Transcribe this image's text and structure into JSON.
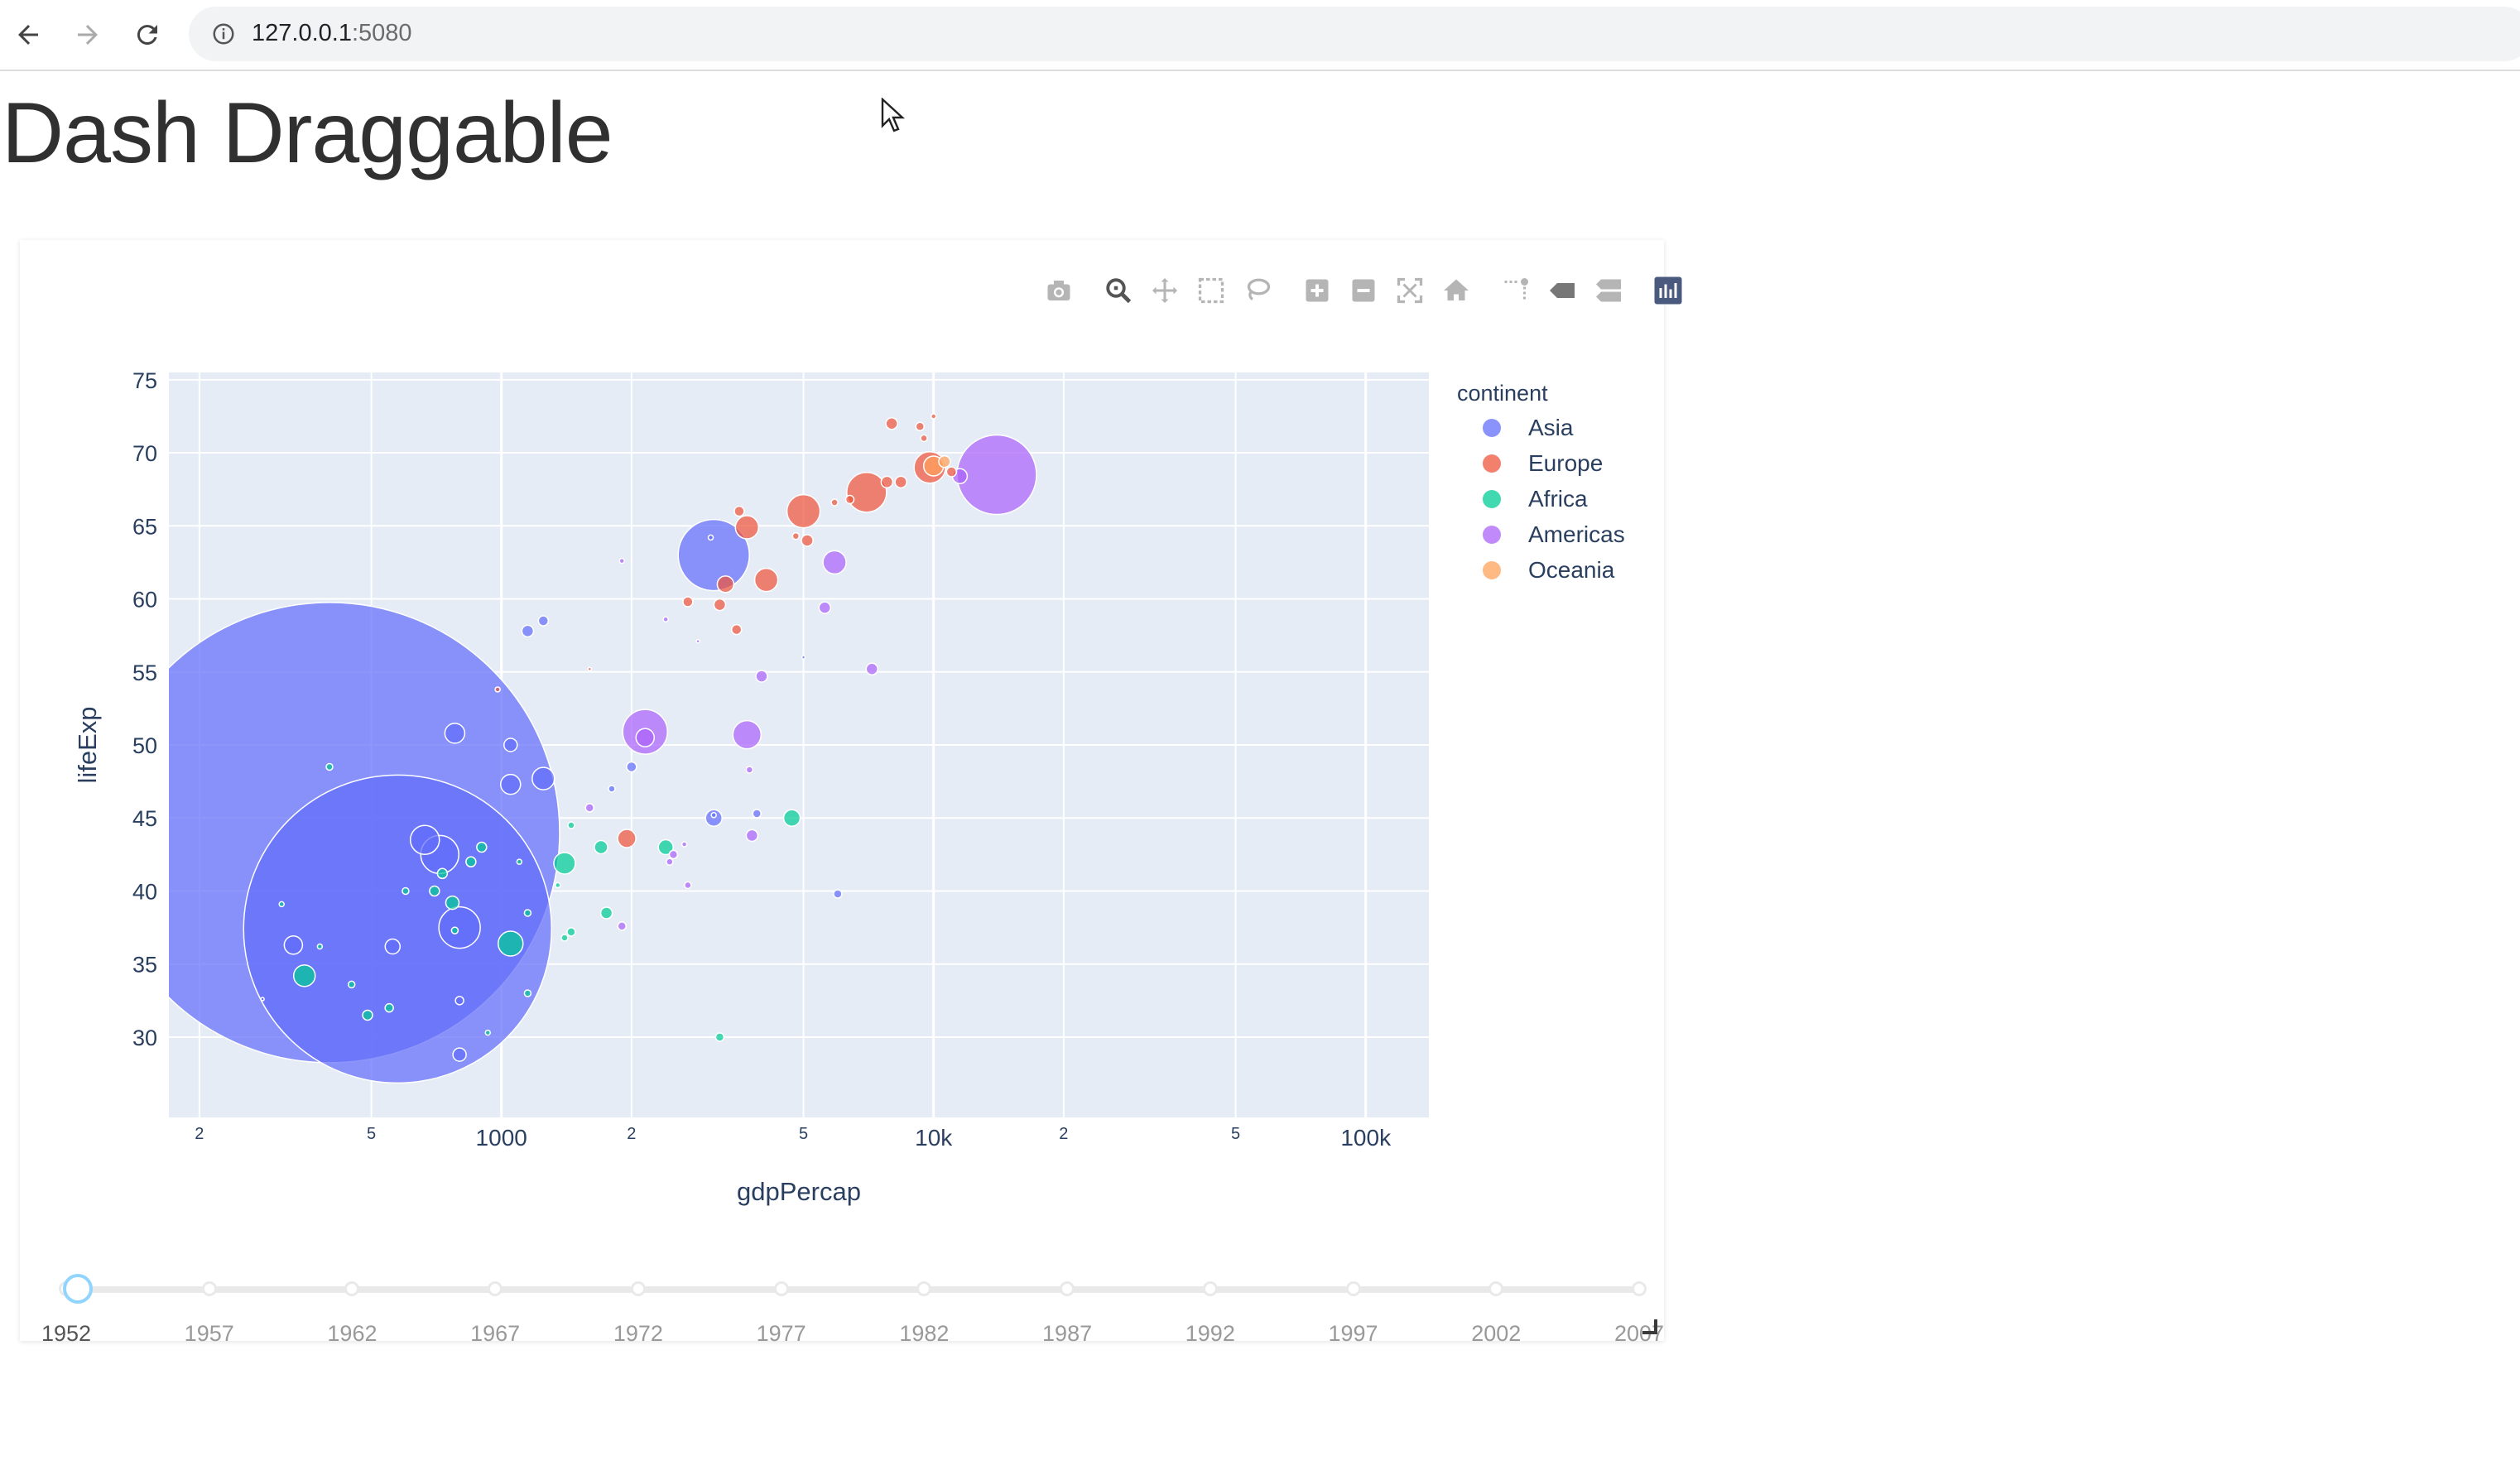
{
  "browser": {
    "url_host": "127.0.0.1",
    "url_port": ":5080"
  },
  "page": {
    "title": "Dash Draggable"
  },
  "modebar": [
    {
      "name": "camera-icon",
      "tooltip": "Download plot as a png"
    },
    {
      "name": "zoom-icon",
      "tooltip": "Zoom"
    },
    {
      "name": "pan-icon",
      "tooltip": "Pan"
    },
    {
      "name": "box-select-icon",
      "tooltip": "Box Select"
    },
    {
      "name": "lasso-select-icon",
      "tooltip": "Lasso Select"
    },
    {
      "name": "zoom-in-icon",
      "tooltip": "Zoom in"
    },
    {
      "name": "zoom-out-icon",
      "tooltip": "Zoom out"
    },
    {
      "name": "autoscale-icon",
      "tooltip": "Autoscale"
    },
    {
      "name": "reset-axes-icon",
      "tooltip": "Reset axes"
    },
    {
      "name": "spike-lines-icon",
      "tooltip": "Toggle Spike Lines"
    },
    {
      "name": "hover-closest-icon",
      "tooltip": "Show closest data on hover"
    },
    {
      "name": "hover-compare-icon",
      "tooltip": "Compare data on hover"
    },
    {
      "name": "plotly-logo-icon",
      "tooltip": "Produced with Plotly"
    }
  ],
  "chart_data": {
    "type": "scatter",
    "xlabel": "gdpPercap",
    "ylabel": "lifeExp",
    "x_scale": "log",
    "xlim": [
      170,
      140000
    ],
    "ylim": [
      24.5,
      75.5
    ],
    "y_ticks": [
      30,
      35,
      40,
      45,
      50,
      55,
      60,
      65,
      70,
      75
    ],
    "x_ticks_major": [
      {
        "v": 1000,
        "label": "1000"
      },
      {
        "v": 10000,
        "label": "10k"
      },
      {
        "v": 100000,
        "label": "100k"
      }
    ],
    "x_ticks_minor": [
      {
        "v": 200,
        "label": "2"
      },
      {
        "v": 500,
        "label": "5"
      },
      {
        "v": 2000,
        "label": "2"
      },
      {
        "v": 5000,
        "label": "5"
      },
      {
        "v": 20000,
        "label": "2"
      },
      {
        "v": 50000,
        "label": "5"
      }
    ],
    "grid": true,
    "legend": {
      "title": "continent",
      "placement": "top-right",
      "entries": [
        "Asia",
        "Europe",
        "Africa",
        "Americas",
        "Oceania"
      ]
    },
    "colors": {
      "Asia": "#636efa",
      "Europe": "#ef553b",
      "Africa": "#00cc96",
      "Americas": "#ab63fa",
      "Oceania": "#ffa15a",
      "plot_bg": "#e5ecf6"
    },
    "series": [
      {
        "name": "Asia",
        "points": [
          [
            400,
            44,
            556
          ],
          [
            575,
            37.4,
            372
          ],
          [
            3100,
            63,
            86
          ],
          [
            720,
            42.5,
            46
          ],
          [
            800,
            37.5,
            50
          ],
          [
            665,
            43.5,
            35
          ],
          [
            2000,
            48.5,
            12
          ],
          [
            780,
            50.8,
            24
          ],
          [
            1050,
            47.3,
            24
          ],
          [
            1250,
            47.7,
            27
          ],
          [
            1050,
            50,
            16
          ],
          [
            1150,
            57.8,
            14
          ],
          [
            1250,
            58.5,
            12
          ],
          [
            3100,
            45,
            20
          ],
          [
            330,
            36.3,
            22
          ],
          [
            560,
            36.2,
            18
          ],
          [
            800,
            32.5,
            10
          ],
          [
            800,
            28.8,
            16
          ],
          [
            3900,
            45.3,
            10
          ],
          [
            3100,
            45.2,
            6
          ],
          [
            6000,
            39.8,
            10
          ],
          [
            5000,
            56,
            4
          ],
          [
            1800,
            47,
            8
          ],
          [
            3050,
            64.2,
            6
          ],
          [
            280,
            32.6,
            2
          ]
        ]
      },
      {
        "name": "Europe",
        "points": [
          [
            7000,
            67.3,
            48
          ],
          [
            5000,
            66,
            40
          ],
          [
            9800,
            69,
            38
          ],
          [
            3700,
            64.9,
            28
          ],
          [
            4100,
            61.3,
            28
          ],
          [
            3300,
            61,
            20
          ],
          [
            1950,
            43.6,
            22
          ],
          [
            7800,
            68,
            14
          ],
          [
            6400,
            66.8,
            10
          ],
          [
            8400,
            68,
            14
          ],
          [
            11000,
            68.7,
            12
          ],
          [
            5100,
            64,
            14
          ],
          [
            8000,
            72,
            14
          ],
          [
            9500,
            71,
            8
          ],
          [
            2700,
            59.8,
            12
          ],
          [
            3200,
            59.6,
            14
          ],
          [
            3500,
            57.9,
            12
          ],
          [
            4800,
            64.3,
            8
          ],
          [
            3550,
            66,
            12
          ],
          [
            5900,
            66.6,
            8
          ],
          [
            9300,
            71.8,
            10
          ],
          [
            10000,
            72.5,
            6
          ],
          [
            980,
            53.8,
            6
          ],
          [
            1600,
            55.2,
            4
          ]
        ]
      },
      {
        "name": "Africa",
        "points": [
          [
            1050,
            36.4,
            30
          ],
          [
            1400,
            41.9,
            26
          ],
          [
            350,
            34.2,
            26
          ],
          [
            4700,
            45,
            20
          ],
          [
            2400,
            43,
            18
          ],
          [
            1700,
            43,
            16
          ],
          [
            1750,
            38.5,
            14
          ],
          [
            770,
            39.2,
            16
          ],
          [
            730,
            41.2,
            12
          ],
          [
            700,
            40,
            12
          ],
          [
            900,
            43,
            12
          ],
          [
            850,
            42,
            12
          ],
          [
            490,
            31.5,
            12
          ],
          [
            550,
            32,
            10
          ],
          [
            1150,
            38.5,
            8
          ],
          [
            1450,
            37.2,
            10
          ],
          [
            1400,
            36.8,
            8
          ],
          [
            3200,
            30,
            10
          ],
          [
            1150,
            33,
            8
          ],
          [
            450,
            33.6,
            8
          ],
          [
            930,
            30.3,
            6
          ],
          [
            400,
            48.5,
            8
          ],
          [
            600,
            40,
            8
          ],
          [
            780,
            37.3,
            8
          ],
          [
            1450,
            44.5,
            8
          ],
          [
            1350,
            40.4,
            6
          ],
          [
            1100,
            42,
            6
          ],
          [
            310,
            39.1,
            6
          ],
          [
            380,
            36.2,
            6
          ]
        ]
      },
      {
        "name": "Americas",
        "points": [
          [
            14000,
            68.5,
            96
          ],
          [
            2150,
            50.9,
            54
          ],
          [
            3700,
            50.7,
            34
          ],
          [
            2150,
            50.5,
            22
          ],
          [
            5900,
            62.5,
            28
          ],
          [
            11500,
            68.4,
            18
          ],
          [
            3800,
            43.8,
            14
          ],
          [
            5600,
            59.4,
            14
          ],
          [
            7200,
            55.2,
            14
          ],
          [
            4000,
            54.7,
            14
          ],
          [
            1600,
            45.7,
            10
          ],
          [
            2500,
            42.5,
            10
          ],
          [
            1900,
            37.6,
            10
          ],
          [
            2700,
            40.4,
            8
          ],
          [
            2450,
            42,
            8
          ],
          [
            3750,
            48.3,
            8
          ],
          [
            2650,
            43.2,
            6
          ],
          [
            1900,
            62.6,
            6
          ],
          [
            2400,
            58.6,
            6
          ],
          [
            2850,
            57.1,
            4
          ]
        ]
      },
      {
        "name": "Oceania",
        "points": [
          [
            10000,
            69.1,
            24
          ],
          [
            10600,
            69.4,
            14
          ]
        ]
      }
    ]
  },
  "slider": {
    "marks": [
      "1952",
      "1957",
      "1962",
      "1967",
      "1972",
      "1977",
      "1982",
      "1987",
      "1992",
      "1997",
      "2002",
      "2007"
    ],
    "selected": "1952"
  }
}
